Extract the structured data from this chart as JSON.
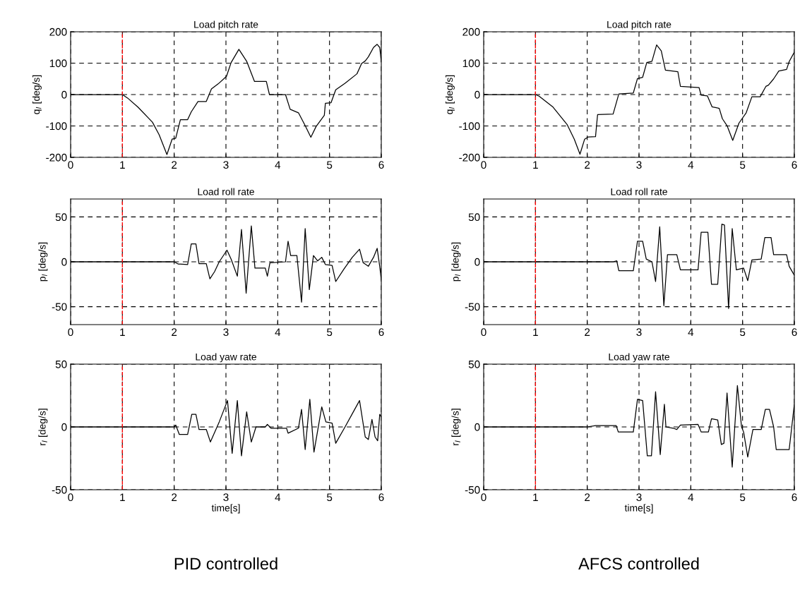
{
  "chart_data": [
    {
      "type": "line",
      "title": "Load pitch rate",
      "ylabel": "q$_{l}$ [deg/s]",
      "xlim": [
        0,
        6
      ],
      "xticks": [
        0,
        1,
        2,
        3,
        4,
        5,
        6
      ],
      "ylim": [
        -200,
        200
      ],
      "yticks": [
        -200,
        -100,
        0,
        100,
        200
      ],
      "grid": true,
      "line_style": "solid",
      "ref_lines": [
        {
          "axis": "x",
          "value": 1,
          "color": "#ff0000",
          "line_style": "dashed"
        }
      ],
      "series": [
        {
          "color": "#000000",
          "x": [
            0,
            1,
            1.1,
            1.3,
            1.58,
            1.71,
            1.86,
            1.96,
            2.03,
            2.12,
            2.26,
            2.33,
            2.46,
            2.62,
            2.72,
            2.85,
            3.01,
            3.1,
            3.25,
            3.4,
            3.55,
            3.78,
            3.84,
            4.15,
            4.24,
            4.4,
            4.53,
            4.64,
            4.74,
            4.9,
            4.92,
            5.03,
            5.12,
            5.3,
            5.53,
            5.62,
            5.69,
            5.75,
            5.85,
            5.92,
            5.97,
            6.0
          ],
          "values": [
            0,
            0,
            -11,
            -40,
            -88,
            -128,
            -191,
            -142,
            -139,
            -80,
            -80,
            -55,
            -22,
            -22,
            18,
            34,
            58,
            102,
            144,
            106,
            42,
            42,
            0,
            0,
            -47,
            -58,
            -99,
            -136,
            -102,
            -66,
            -28,
            -26,
            15,
            36,
            66,
            99,
            107,
            120,
            150,
            160,
            150,
            105
          ]
        }
      ]
    },
    {
      "type": "line",
      "title": "Load pitch rate",
      "ylabel": "q$_{l}$ [deg/s]",
      "xlim": [
        0,
        6
      ],
      "xticks": [
        0,
        1,
        2,
        3,
        4,
        5,
        6
      ],
      "ylim": [
        -200,
        200
      ],
      "yticks": [
        -200,
        -100,
        0,
        100,
        200
      ],
      "grid": true,
      "line_style": "solid",
      "ref_lines": [
        {
          "axis": "x",
          "value": 1,
          "color": "#ff0000",
          "line_style": "dashed"
        }
      ],
      "series": [
        {
          "color": "#000000",
          "x": [
            0,
            1,
            1.07,
            1.34,
            1.61,
            1.75,
            1.86,
            1.95,
            2.02,
            2.16,
            2.2,
            2.5,
            2.61,
            2.89,
            2.97,
            3.07,
            3.15,
            3.25,
            3.34,
            3.43,
            3.51,
            3.75,
            3.8,
            4.16,
            4.2,
            4.32,
            4.41,
            4.55,
            4.61,
            4.7,
            4.81,
            4.93,
            5.07,
            5.18,
            5.34,
            5.45,
            5.5,
            5.6,
            5.7,
            5.85,
            5.9,
            6.0
          ],
          "values": [
            0,
            0,
            -5,
            -40,
            -95,
            -142,
            -190,
            -142,
            -135,
            -134,
            -64,
            -62,
            2,
            5,
            51,
            55,
            102,
            106,
            158,
            139,
            78,
            73,
            26,
            22,
            -2,
            -4,
            -39,
            -44,
            -77,
            -99,
            -146,
            -91,
            -58,
            -7,
            -7,
            26,
            30,
            50,
            75,
            80,
            105,
            135
          ]
        }
      ]
    },
    {
      "type": "line",
      "title": "Load roll rate",
      "ylabel": "p$_{l}$ [deg/s]",
      "xlim": [
        0,
        6
      ],
      "xticks": [
        0,
        1,
        2,
        3,
        4,
        5,
        6
      ],
      "ylim": [
        -70,
        70
      ],
      "yticks": [
        -50,
        0,
        50
      ],
      "grid": true,
      "line_style": "solid",
      "ref_lines": [
        {
          "axis": "x",
          "value": 1,
          "color": "#ff0000",
          "line_style": "dashed"
        }
      ],
      "series": [
        {
          "color": "#000000",
          "x": [
            0,
            2.0,
            2.08,
            2.26,
            2.33,
            2.42,
            2.48,
            2.62,
            2.69,
            2.78,
            2.87,
            3.02,
            3.1,
            3.22,
            3.3,
            3.39,
            3.49,
            3.56,
            3.76,
            3.8,
            3.85,
            4.15,
            4.2,
            4.25,
            4.37,
            4.46,
            4.53,
            4.61,
            4.69,
            4.77,
            4.85,
            4.92,
            5.05,
            5.12,
            5.28,
            5.44,
            5.58,
            5.65,
            5.75,
            5.85,
            5.92,
            5.97,
            6.0
          ],
          "values": [
            0,
            0,
            -2.5,
            -3,
            20,
            20,
            -2,
            -2,
            -19,
            -11,
            0,
            13,
            3,
            -16,
            36,
            -35,
            40,
            -7,
            -7,
            -16,
            -1,
            0,
            23,
            7,
            7,
            -45,
            37,
            -31,
            7,
            1,
            5,
            -3,
            -4,
            -22,
            -8,
            5,
            14,
            -1,
            -5,
            5,
            15,
            -5,
            -20
          ]
        }
      ]
    },
    {
      "type": "line",
      "title": "Load roll rate",
      "ylabel": "p$_{l}$ [deg/s]",
      "xlim": [
        0,
        6
      ],
      "xticks": [
        0,
        1,
        2,
        3,
        4,
        5,
        6
      ],
      "ylim": [
        -70,
        70
      ],
      "yticks": [
        -50,
        0,
        50
      ],
      "grid": true,
      "line_style": "solid",
      "ref_lines": [
        {
          "axis": "x",
          "value": 1,
          "color": "#ff0000",
          "line_style": "dashed"
        }
      ],
      "series": [
        {
          "color": "#000000",
          "x": [
            0,
            2.5,
            2.57,
            2.61,
            2.89,
            2.97,
            3.07,
            3.14,
            3.25,
            3.32,
            3.4,
            3.48,
            3.55,
            3.73,
            3.8,
            4.14,
            4.2,
            4.33,
            4.4,
            4.52,
            4.6,
            4.65,
            4.73,
            4.8,
            4.88,
            5.02,
            5.1,
            5.18,
            5.36,
            5.43,
            5.55,
            5.6,
            5.85,
            5.9,
            6.0
          ],
          "values": [
            0,
            0,
            1,
            -10,
            -10,
            23,
            23,
            3,
            0,
            -22,
            39,
            -49,
            8,
            8,
            -9,
            -9,
            33,
            33,
            -25,
            -25,
            42,
            41,
            -52,
            37,
            -9,
            -7,
            -21,
            2,
            3,
            27,
            27,
            8,
            8,
            -5,
            -15
          ]
        }
      ]
    },
    {
      "type": "line",
      "title": "Load yaw rate",
      "ylabel": "r$_{l}$ [deg/s]",
      "xlabel": "time[s]",
      "xlim": [
        0,
        6
      ],
      "xticks": [
        0,
        1,
        2,
        3,
        4,
        5,
        6
      ],
      "ylim": [
        -50,
        50
      ],
      "yticks": [
        -50,
        0,
        50
      ],
      "grid": true,
      "line_style": "solid",
      "annotations": [
        "PID controlled"
      ],
      "ref_lines": [
        {
          "axis": "x",
          "value": 1,
          "color": "#ff0000",
          "line_style": "dashed"
        }
      ],
      "series": [
        {
          "color": "#000000",
          "x": [
            0,
            2.0,
            2.03,
            2.1,
            2.26,
            2.34,
            2.42,
            2.48,
            2.62,
            2.7,
            2.87,
            3.03,
            3.12,
            3.22,
            3.3,
            3.4,
            3.49,
            3.58,
            3.76,
            3.8,
            3.87,
            4.17,
            4.2,
            4.4,
            4.46,
            4.53,
            4.62,
            4.7,
            4.85,
            4.93,
            5.05,
            5.12,
            5.3,
            5.46,
            5.58,
            5.69,
            5.75,
            5.82,
            5.88,
            5.93,
            5.97,
            6.0
          ],
          "values": [
            0,
            0,
            1.5,
            -6,
            -6,
            10,
            10,
            -2,
            -2,
            -12,
            4,
            21,
            -21,
            21,
            -23,
            12,
            -12,
            0,
            0,
            2,
            -1,
            -1,
            -5,
            -1,
            14,
            -18,
            22,
            -20,
            16,
            4,
            3,
            -13,
            0,
            12,
            21,
            -8,
            -10,
            6,
            -8,
            -11,
            10,
            8
          ]
        }
      ]
    },
    {
      "type": "line",
      "title": "Load yaw rate",
      "ylabel": "r$_{l}$ [deg/s]",
      "xlabel": "time[s]",
      "xlim": [
        0,
        6
      ],
      "xticks": [
        0,
        1,
        2,
        3,
        4,
        5,
        6
      ],
      "ylim": [
        -50,
        50
      ],
      "yticks": [
        -50,
        0,
        50
      ],
      "grid": true,
      "line_style": "solid",
      "annotations": [
        "AFCS controlled"
      ],
      "ref_lines": [
        {
          "axis": "x",
          "value": 1,
          "color": "#ff0000",
          "line_style": "dashed"
        }
      ],
      "series": [
        {
          "color": "#000000",
          "x": [
            0,
            2.0,
            2.16,
            2.56,
            2.6,
            2.89,
            2.97,
            3.07,
            3.16,
            3.24,
            3.32,
            3.41,
            3.49,
            3.52,
            3.66,
            3.73,
            3.8,
            4.14,
            4.2,
            4.34,
            4.4,
            4.52,
            4.59,
            4.64,
            4.7,
            4.8,
            4.9,
            4.98,
            5.02,
            5.1,
            5.2,
            5.36,
            5.44,
            5.52,
            5.6,
            5.65,
            5.9,
            5.95,
            6.0
          ],
          "values": [
            0,
            0,
            1,
            1,
            -4,
            -4,
            22,
            21,
            -23,
            -23,
            28,
            -22,
            18,
            0,
            -1,
            -2,
            1.5,
            2,
            -4,
            -4,
            6.5,
            5.5,
            -14,
            -13,
            27,
            -32,
            33,
            0,
            -4,
            -24,
            -2,
            -2,
            14,
            14,
            0,
            -18,
            -18,
            0,
            18
          ]
        }
      ]
    }
  ]
}
